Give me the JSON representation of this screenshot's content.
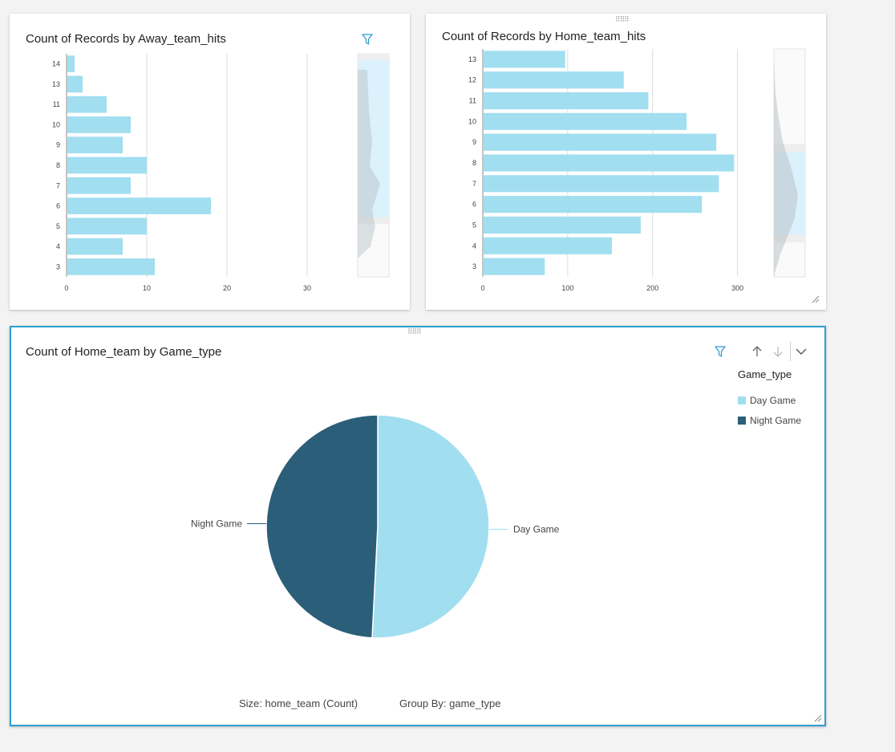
{
  "colors": {
    "bar": "#a1def0",
    "day": "#a1def0",
    "night": "#2b5e78",
    "accent": "#2f9ed0",
    "grid": "#dcdcdc"
  },
  "charts": {
    "away": {
      "title": "Count of Records by Away_team_hits",
      "icons": [
        "filter-icon"
      ]
    },
    "home": {
      "title": "Count of Records by Home_team_hits"
    },
    "pie": {
      "title": "Count of Home_team by Game_type",
      "legend_title": "Game_type",
      "footer_size": "Size: home_team (Count)",
      "footer_group": "Group By: game_type",
      "icons": [
        "filter-icon",
        "arrow-up-icon",
        "arrow-down-icon",
        "chevron-down-icon"
      ]
    }
  },
  "chart_data": [
    {
      "type": "bar",
      "orientation": "horizontal",
      "title": "Count of Records by Away_team_hits",
      "categories": [
        "14",
        "13",
        "11",
        "10",
        "9",
        "8",
        "7",
        "6",
        "5",
        "4",
        "3"
      ],
      "values": [
        1,
        2,
        5,
        8,
        7,
        10,
        8,
        18,
        10,
        7,
        11
      ],
      "xlim": [
        0,
        36
      ],
      "xticks": [
        0,
        10,
        20,
        30
      ],
      "grid": true
    },
    {
      "type": "bar",
      "orientation": "horizontal",
      "title": "Count of Records by Home_team_hits",
      "categories": [
        "13",
        "12",
        "11",
        "10",
        "9",
        "8",
        "7",
        "6",
        "5",
        "4",
        "3"
      ],
      "values": [
        97,
        166,
        195,
        240,
        275,
        296,
        278,
        258,
        186,
        152,
        73
      ],
      "xlim": [
        0,
        340
      ],
      "xticks": [
        0,
        100,
        200,
        300
      ],
      "grid": true
    },
    {
      "type": "pie",
      "title": "Count of Home_team by Game_type",
      "labels": [
        "Day Game",
        "Night Game"
      ],
      "values": [
        50.8,
        49.2
      ],
      "legend": "top-right"
    }
  ]
}
